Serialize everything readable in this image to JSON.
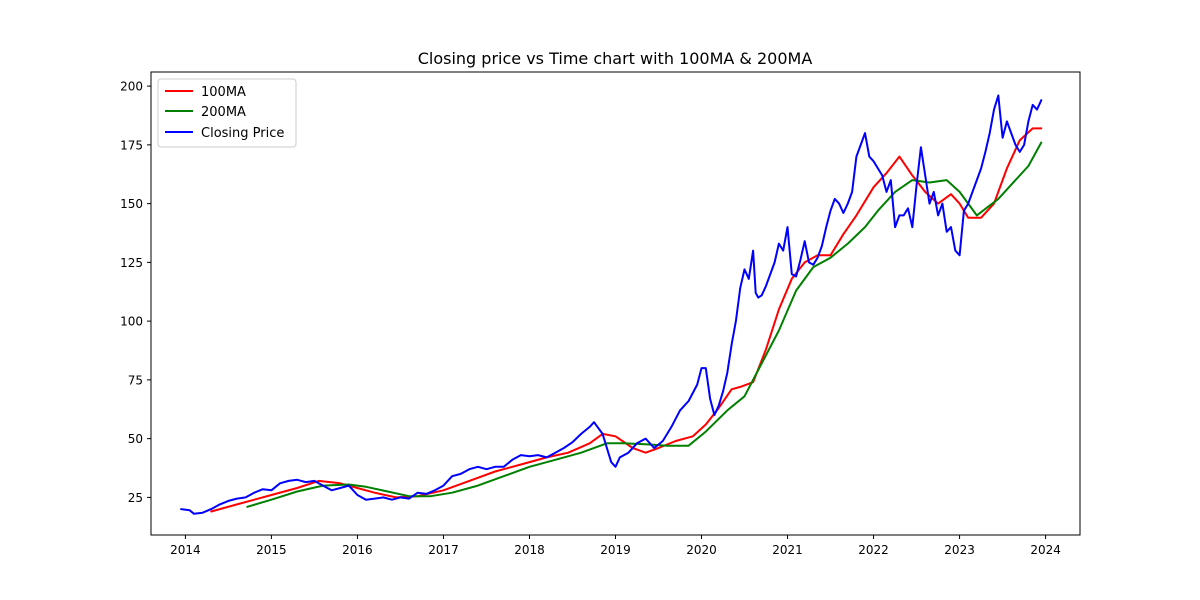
{
  "chart_data": {
    "type": "line",
    "title": "Closing price vs Time chart with 100MA & 200MA",
    "xlabel": "",
    "ylabel": "",
    "xlim": [
      2013.6,
      2024.4
    ],
    "ylim": [
      9,
      206
    ],
    "x_ticks": [
      2014,
      2015,
      2016,
      2017,
      2018,
      2019,
      2020,
      2021,
      2022,
      2023,
      2024
    ],
    "x_tick_labels": [
      "2014",
      "2015",
      "2016",
      "2017",
      "2018",
      "2019",
      "2020",
      "2021",
      "2022",
      "2023",
      "2024"
    ],
    "y_ticks": [
      25,
      50,
      75,
      100,
      125,
      150,
      175,
      200
    ],
    "y_tick_labels": [
      "25",
      "50",
      "75",
      "100",
      "125",
      "150",
      "175",
      "200"
    ],
    "grid": false,
    "legend_position": "top-left",
    "series": [
      {
        "name": "100MA",
        "color": "#ff0000",
        "x": [
          2014.3,
          2014.6,
          2015.0,
          2015.3,
          2015.55,
          2015.8,
          2016.0,
          2016.2,
          2016.45,
          2016.7,
          2017.0,
          2017.3,
          2017.6,
          2017.9,
          2018.2,
          2018.45,
          2018.7,
          2018.85,
          2019.0,
          2019.2,
          2019.35,
          2019.5,
          2019.7,
          2019.9,
          2020.05,
          2020.2,
          2020.35,
          2020.45,
          2020.6,
          2020.75,
          2020.9,
          2021.05,
          2021.2,
          2021.35,
          2021.5,
          2021.65,
          2021.8,
          2022.0,
          2022.15,
          2022.3,
          2022.45,
          2022.6,
          2022.75,
          2022.9,
          2023.0,
          2023.1,
          2023.25,
          2023.4,
          2023.55,
          2023.7,
          2023.85,
          2023.95
        ],
        "values": [
          19,
          22,
          26,
          29,
          32,
          31,
          29,
          27,
          25,
          25.5,
          28,
          32,
          36,
          39,
          42,
          44,
          48,
          52,
          51,
          46,
          44,
          46,
          49,
          51,
          56,
          63,
          71,
          72,
          74,
          88,
          105,
          118,
          125,
          128,
          128,
          137,
          145,
          157,
          163,
          170,
          162,
          155,
          150,
          154,
          150,
          144,
          144,
          150,
          165,
          177,
          182,
          182
        ]
      },
      {
        "name": "200MA",
        "color": "#008000",
        "x": [
          2014.72,
          2015.0,
          2015.3,
          2015.6,
          2015.9,
          2016.1,
          2016.35,
          2016.6,
          2016.85,
          2017.1,
          2017.4,
          2017.7,
          2018.0,
          2018.3,
          2018.6,
          2018.9,
          2019.1,
          2019.4,
          2019.6,
          2019.85,
          2020.05,
          2020.3,
          2020.5,
          2020.7,
          2020.9,
          2021.1,
          2021.3,
          2021.5,
          2021.7,
          2021.9,
          2022.05,
          2022.25,
          2022.45,
          2022.65,
          2022.85,
          2023.0,
          2023.2,
          2023.45,
          2023.65,
          2023.8,
          2023.95
        ],
        "values": [
          21,
          24,
          27.5,
          30,
          30.5,
          29.5,
          27.5,
          25.5,
          25.5,
          27,
          30,
          34,
          38,
          41,
          44,
          48,
          48,
          47.5,
          47,
          47,
          53,
          62,
          68,
          82,
          96,
          113,
          123,
          127,
          133,
          140,
          147,
          155,
          160,
          159,
          160,
          155,
          145,
          152,
          160,
          166,
          176
        ]
      },
      {
        "name": "Closing Price",
        "color": "#0000ff",
        "x": [
          2013.95,
          2014.05,
          2014.1,
          2014.2,
          2014.3,
          2014.4,
          2014.5,
          2014.6,
          2014.7,
          2014.8,
          2014.9,
          2015.0,
          2015.1,
          2015.2,
          2015.3,
          2015.4,
          2015.5,
          2015.6,
          2015.7,
          2015.8,
          2015.9,
          2016.0,
          2016.1,
          2016.2,
          2016.3,
          2016.4,
          2016.5,
          2016.6,
          2016.7,
          2016.8,
          2016.9,
          2017.0,
          2017.1,
          2017.2,
          2017.3,
          2017.4,
          2017.5,
          2017.6,
          2017.7,
          2017.8,
          2017.9,
          2018.0,
          2018.1,
          2018.2,
          2018.3,
          2018.4,
          2018.5,
          2018.6,
          2018.7,
          2018.75,
          2018.85,
          2018.95,
          2019.0,
          2019.05,
          2019.15,
          2019.25,
          2019.35,
          2019.45,
          2019.55,
          2019.65,
          2019.75,
          2019.85,
          2019.95,
          2020.0,
          2020.05,
          2020.1,
          2020.15,
          2020.2,
          2020.25,
          2020.3,
          2020.35,
          2020.4,
          2020.45,
          2020.5,
          2020.55,
          2020.6,
          2020.63,
          2020.66,
          2020.7,
          2020.75,
          2020.8,
          2020.85,
          2020.9,
          2020.95,
          2021.0,
          2021.05,
          2021.1,
          2021.15,
          2021.2,
          2021.25,
          2021.3,
          2021.35,
          2021.4,
          2021.45,
          2021.5,
          2021.55,
          2021.6,
          2021.65,
          2021.7,
          2021.75,
          2021.8,
          2021.85,
          2021.9,
          2021.95,
          2022.0,
          2022.05,
          2022.1,
          2022.15,
          2022.2,
          2022.25,
          2022.3,
          2022.35,
          2022.4,
          2022.45,
          2022.5,
          2022.55,
          2022.6,
          2022.65,
          2022.7,
          2022.75,
          2022.8,
          2022.85,
          2022.9,
          2022.95,
          2023.0,
          2023.05,
          2023.1,
          2023.15,
          2023.2,
          2023.25,
          2023.3,
          2023.35,
          2023.4,
          2023.45,
          2023.5,
          2023.55,
          2023.6,
          2023.65,
          2023.7,
          2023.75,
          2023.8,
          2023.85,
          2023.9,
          2023.95
        ],
        "values": [
          20,
          19.5,
          18,
          18.5,
          20,
          22,
          23.5,
          24.5,
          25,
          27,
          28.5,
          28,
          31,
          32,
          32.5,
          31.5,
          32,
          30,
          28,
          29,
          30,
          26,
          24,
          24.5,
          25,
          24,
          25,
          24.5,
          27,
          26.5,
          28,
          30,
          34,
          35,
          37,
          38,
          37,
          38,
          38,
          41,
          43,
          42.5,
          43,
          42,
          44,
          46,
          48.5,
          52,
          55,
          57,
          52,
          40,
          38,
          42,
          44,
          48,
          50,
          46,
          49,
          55,
          62,
          66,
          73,
          80,
          80,
          67,
          60,
          64,
          70,
          78,
          90,
          100,
          114,
          122,
          118,
          130,
          112,
          110,
          111,
          115,
          120,
          125,
          133,
          130,
          140,
          120,
          119,
          126,
          134,
          125,
          124,
          127,
          132,
          140,
          147,
          152,
          150,
          146,
          150,
          155,
          170,
          175,
          180,
          170,
          168,
          165,
          162,
          155,
          160,
          140,
          145,
          145,
          148,
          140,
          158,
          174,
          162,
          150,
          155,
          145,
          150,
          138,
          140,
          130,
          128,
          147,
          150,
          155,
          160,
          165,
          172,
          180,
          190,
          196,
          178,
          185,
          180,
          175,
          172,
          175,
          185,
          192,
          190,
          194
        ]
      }
    ]
  }
}
